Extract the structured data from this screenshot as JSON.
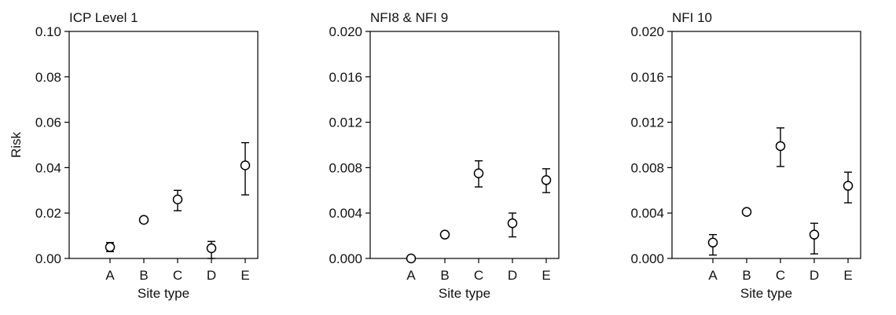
{
  "chart_data": [
    {
      "type": "scatter",
      "title": "ICP Level 1",
      "xlabel": "Site type",
      "ylabel": "Risk",
      "categories": [
        "A",
        "B",
        "C",
        "D",
        "E"
      ],
      "ylim": [
        0,
        0.1
      ],
      "yticks": [
        "0.00",
        "0.02",
        "0.04",
        "0.06",
        "0.08",
        "0.10"
      ],
      "points": [
        {
          "x": "A",
          "y": 0.005,
          "low": 0.003,
          "high": 0.007
        },
        {
          "x": "B",
          "y": 0.017,
          "low": null,
          "high": null
        },
        {
          "x": "C",
          "y": 0.026,
          "low": 0.021,
          "high": 0.03
        },
        {
          "x": "D",
          "y": 0.0045,
          "low": 0.0,
          "high": 0.0075
        },
        {
          "x": "E",
          "y": 0.041,
          "low": 0.028,
          "high": 0.051
        }
      ]
    },
    {
      "type": "scatter",
      "title": "NFI8 & NFI 9",
      "xlabel": "Site type",
      "ylabel": "",
      "categories": [
        "A",
        "B",
        "C",
        "D",
        "E"
      ],
      "ylim": [
        0,
        0.02
      ],
      "yticks": [
        "0.000",
        "0.004",
        "0.008",
        "0.012",
        "0.016",
        "0.020"
      ],
      "points": [
        {
          "x": "A",
          "y": 0.0,
          "low": null,
          "high": null
        },
        {
          "x": "B",
          "y": 0.0021,
          "low": null,
          "high": null
        },
        {
          "x": "C",
          "y": 0.0075,
          "low": 0.0063,
          "high": 0.0086
        },
        {
          "x": "D",
          "y": 0.0031,
          "low": 0.0019,
          "high": 0.004
        },
        {
          "x": "E",
          "y": 0.0069,
          "low": 0.0058,
          "high": 0.0079
        }
      ]
    },
    {
      "type": "scatter",
      "title": "NFI 10",
      "xlabel": "Site type",
      "ylabel": "",
      "categories": [
        "A",
        "B",
        "C",
        "D",
        "E"
      ],
      "ylim": [
        0,
        0.02
      ],
      "yticks": [
        "0.000",
        "0.004",
        "0.008",
        "0.012",
        "0.016",
        "0.020"
      ],
      "points": [
        {
          "x": "A",
          "y": 0.0014,
          "low": 0.0003,
          "high": 0.0021
        },
        {
          "x": "B",
          "y": 0.0041,
          "low": null,
          "high": null
        },
        {
          "x": "C",
          "y": 0.0099,
          "low": 0.0081,
          "high": 0.0115
        },
        {
          "x": "D",
          "y": 0.0021,
          "low": 0.0004,
          "high": 0.0031
        },
        {
          "x": "E",
          "y": 0.0064,
          "low": 0.0049,
          "high": 0.0076
        }
      ]
    }
  ]
}
